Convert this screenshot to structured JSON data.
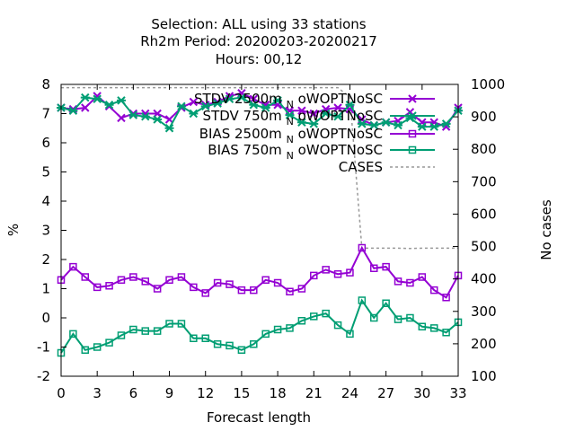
{
  "chart_data": {
    "type": "line",
    "title_lines": [
      "Selection: ALL using    33 stations",
      "Rh2m   Period: 20200203-20200217",
      "Hours:  00,12"
    ],
    "xlabel": "Forecast length",
    "ylabel": "%",
    "y2label": "No cases",
    "xlim": [
      0,
      33
    ],
    "ylim": [
      -2,
      8
    ],
    "y2lim": [
      100,
      1000
    ],
    "xticks": [
      0,
      3,
      6,
      9,
      12,
      15,
      18,
      21,
      24,
      27,
      30,
      33
    ],
    "yticks": [
      -2,
      -1,
      0,
      1,
      2,
      3,
      4,
      5,
      6,
      7,
      8
    ],
    "y2ticks": [
      100,
      200,
      300,
      400,
      500,
      600,
      700,
      800,
      900,
      1000
    ],
    "x": [
      0,
      1,
      2,
      3,
      4,
      5,
      6,
      7,
      8,
      9,
      10,
      11,
      12,
      13,
      14,
      15,
      16,
      17,
      18,
      19,
      20,
      21,
      22,
      23,
      24,
      25,
      26,
      27,
      28,
      29,
      30,
      31,
      32,
      33
    ],
    "legend_position": "top-right",
    "series": [
      {
        "name": "STDV 2500m",
        "name_sub": "N",
        "name_suffix": "oWOPTNoSC",
        "axis": "y1",
        "color": "#9400d3",
        "marker": "cross",
        "values": [
          7.2,
          7.15,
          7.2,
          7.6,
          7.25,
          6.85,
          7.0,
          7.0,
          7.0,
          6.8,
          7.2,
          7.4,
          7.3,
          7.4,
          7.6,
          7.7,
          7.5,
          7.3,
          7.3,
          7.1,
          7.1,
          7.0,
          7.15,
          7.2,
          7.15,
          6.8,
          6.6,
          6.7,
          6.75,
          7.05,
          6.7,
          6.7,
          6.55,
          7.2
        ]
      },
      {
        "name": "STDV 750m",
        "name_sub": "N",
        "name_suffix": "oWOPTNoSC",
        "axis": "y1",
        "color": "#009e73",
        "marker": "star",
        "values": [
          7.2,
          7.1,
          7.55,
          7.5,
          7.3,
          7.45,
          6.95,
          6.9,
          6.8,
          6.5,
          7.25,
          7.0,
          7.25,
          7.35,
          7.5,
          7.55,
          7.3,
          7.2,
          7.45,
          6.95,
          6.7,
          6.65,
          7.0,
          6.9,
          7.3,
          6.65,
          6.6,
          6.7,
          6.6,
          6.85,
          6.55,
          6.55,
          6.65,
          7.1
        ]
      },
      {
        "name": "BIAS 2500m",
        "name_sub": "N",
        "name_suffix": "oWOPTNoSC",
        "axis": "y1",
        "color": "#9400d3",
        "marker": "square",
        "values": [
          1.3,
          1.75,
          1.4,
          1.05,
          1.1,
          1.3,
          1.4,
          1.25,
          1.0,
          1.3,
          1.4,
          1.05,
          0.85,
          1.2,
          1.15,
          0.95,
          0.95,
          1.3,
          1.2,
          0.9,
          1.0,
          1.45,
          1.65,
          1.5,
          1.55,
          2.4,
          1.7,
          1.75,
          1.25,
          1.2,
          1.4,
          0.95,
          0.7,
          1.45
        ]
      },
      {
        "name": "BIAS 750m",
        "name_sub": "N",
        "name_suffix": "oWOPTNoSC",
        "axis": "y1",
        "color": "#009e73",
        "marker": "square",
        "values": [
          -1.2,
          -0.55,
          -1.1,
          -1.0,
          -0.85,
          -0.6,
          -0.4,
          -0.45,
          -0.45,
          -0.2,
          -0.2,
          -0.7,
          -0.7,
          -0.9,
          -0.95,
          -1.1,
          -0.9,
          -0.55,
          -0.4,
          -0.35,
          -0.1,
          0.05,
          0.15,
          -0.25,
          -0.55,
          0.6,
          0.0,
          0.5,
          -0.05,
          0.0,
          -0.3,
          -0.35,
          -0.5,
          -0.15
        ]
      },
      {
        "name": "CASES",
        "axis": "y2",
        "color": "#999999",
        "style": "dashed",
        "values": [
          990,
          990,
          990,
          990,
          990,
          990,
          990,
          990,
          990,
          990,
          990,
          990,
          990,
          990,
          990,
          990,
          990,
          990,
          990,
          990,
          990,
          990,
          990,
          990,
          960,
          495,
          495,
          495,
          495,
          494,
          495,
          495,
          495,
          495
        ]
      }
    ]
  }
}
